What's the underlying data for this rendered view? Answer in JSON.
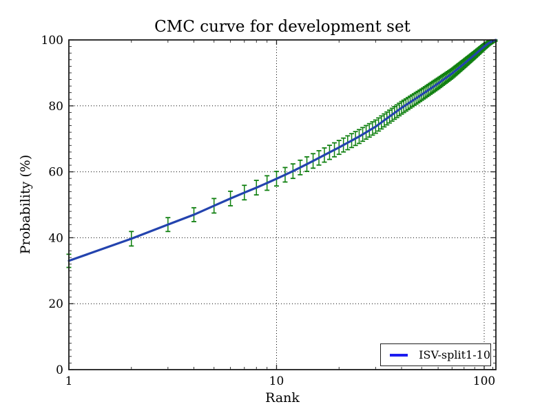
{
  "figure": {
    "title": "CMC curve for development set",
    "xlabel": "Rank",
    "ylabel": "Probability (%)",
    "legend": {
      "label": "ISV-split1-10"
    }
  },
  "colors": {
    "background": "#ffffff",
    "curve_line": "#2343ae",
    "error_bars": "#108010",
    "legend_swatch": "#1c1cf0",
    "spine": "#1c1c1c",
    "grid": "#000000",
    "text": "#000000"
  },
  "chart_data": {
    "type": "line",
    "title": "CMC curve for development set",
    "xlabel": "Rank",
    "ylabel": "Probability (%)",
    "x_scale": "log10",
    "xlim": [
      1,
      113.8
    ],
    "ylim": [
      0,
      100
    ],
    "x_ticks": [
      1,
      10,
      100
    ],
    "y_ticks": [
      0,
      20,
      40,
      60,
      80,
      100
    ],
    "y_minor_step": 2,
    "grid": "dotted, major ticks only",
    "legend_position": "lower right",
    "max_rank": 113,
    "series": [
      {
        "name": "ISV-split1-10",
        "style": "solid line with vertical error bars at every integer rank",
        "note": "anchor points [rank, probability_pct, error_halfwidth_pct] read from plot; values between anchors are log-linear",
        "points": [
          [
            1,
            33.0,
            2.0
          ],
          [
            2,
            39.7,
            2.2
          ],
          [
            3,
            44.0,
            2.1
          ],
          [
            4,
            47.0,
            2.1
          ],
          [
            5,
            49.7,
            2.2
          ],
          [
            6,
            51.9,
            2.2
          ],
          [
            7,
            53.7,
            2.2
          ],
          [
            8,
            55.2,
            2.2
          ],
          [
            9,
            56.6,
            2.2
          ],
          [
            10,
            57.9,
            2.2
          ],
          [
            12,
            60.2,
            2.2
          ],
          [
            15,
            63.3,
            2.2
          ],
          [
            20,
            67.4,
            2.1
          ],
          [
            25,
            70.7,
            2.1
          ],
          [
            30,
            73.7,
            2.0
          ],
          [
            40,
            79.4,
            1.9
          ],
          [
            50,
            83.4,
            1.7
          ],
          [
            60,
            86.8,
            1.6
          ],
          [
            70,
            89.8,
            1.4
          ],
          [
            80,
            92.8,
            1.2
          ],
          [
            90,
            95.5,
            1.0
          ],
          [
            100,
            98.0,
            0.8
          ],
          [
            105,
            99.0,
            0.6
          ],
          [
            110,
            99.7,
            0.45
          ],
          [
            113,
            99.95,
            0.35
          ]
        ]
      }
    ]
  }
}
